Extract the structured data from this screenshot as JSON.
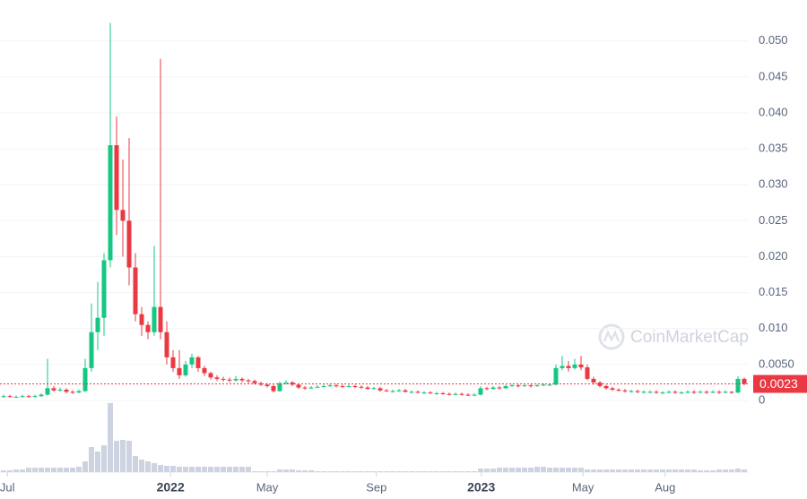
{
  "chart_data": {
    "type": "candlestick",
    "open": [
      0.0005,
      0.0006,
      0.0005,
      0.0005,
      0.0006,
      0.0005,
      0.0006,
      0.0008,
      0.0017,
      0.0014,
      0.0015,
      0.0012,
      0.0011,
      0.0013,
      0.0045,
      0.0095,
      0.0115,
      0.0195,
      0.0355,
      0.0265,
      0.025,
      0.0185,
      0.012,
      0.0105,
      0.0095,
      0.013,
      0.0095,
      0.006,
      0.0045,
      0.0035,
      0.005,
      0.006,
      0.0045,
      0.0038,
      0.0032,
      0.003,
      0.0029,
      0.0028,
      0.003,
      0.0028,
      0.0027,
      0.0024,
      0.0022,
      0.002,
      0.0013,
      0.0024,
      0.0025,
      0.0022,
      0.0018,
      0.0017,
      0.0018,
      0.0019,
      0.002,
      0.0021,
      0.002,
      0.0019,
      0.002,
      0.0019,
      0.0018,
      0.0016,
      0.0017,
      0.0014,
      0.0013,
      0.0013,
      0.0014,
      0.0012,
      0.0012,
      0.0011,
      0.0011,
      0.001,
      0.001,
      0.0009,
      0.0008,
      0.0009,
      0.0008,
      0.0007,
      0.0008,
      0.0017,
      0.0016,
      0.0018,
      0.0017,
      0.002,
      0.0021,
      0.002,
      0.0021,
      0.002,
      0.0021,
      0.0022,
      0.0022,
      0.0045,
      0.0048,
      0.0045,
      0.005,
      0.0046,
      0.003,
      0.0025,
      0.002,
      0.0017,
      0.0015,
      0.0014,
      0.0013,
      0.0013,
      0.0012,
      0.0012,
      0.0012,
      0.0011,
      0.0011,
      0.0012,
      0.0011,
      0.0011,
      0.0012,
      0.0011,
      0.0012,
      0.0011,
      0.0012,
      0.0011,
      0.0012,
      0.0011,
      0.003
    ],
    "high": [
      0.0008,
      0.0008,
      0.0007,
      0.0008,
      0.0008,
      0.0008,
      0.001,
      0.0058,
      0.002,
      0.0018,
      0.0017,
      0.0014,
      0.0015,
      0.0058,
      0.0135,
      0.0165,
      0.0205,
      0.0525,
      0.0395,
      0.0335,
      0.0365,
      0.0205,
      0.013,
      0.011,
      0.0215,
      0.0475,
      0.011,
      0.007,
      0.007,
      0.0055,
      0.0065,
      0.0062,
      0.0048,
      0.004,
      0.0035,
      0.0033,
      0.0032,
      0.0034,
      0.0032,
      0.003,
      0.0029,
      0.0026,
      0.0024,
      0.0022,
      0.0026,
      0.0028,
      0.0027,
      0.0023,
      0.002,
      0.002,
      0.0021,
      0.0022,
      0.0023,
      0.0023,
      0.0022,
      0.0022,
      0.0022,
      0.0021,
      0.002,
      0.0019,
      0.0019,
      0.0016,
      0.0015,
      0.0016,
      0.0016,
      0.0014,
      0.0014,
      0.0013,
      0.0013,
      0.0012,
      0.0012,
      0.0011,
      0.0011,
      0.0011,
      0.001,
      0.001,
      0.002,
      0.0019,
      0.002,
      0.002,
      0.0022,
      0.0023,
      0.0023,
      0.0023,
      0.0023,
      0.0023,
      0.0024,
      0.0024,
      0.005,
      0.0062,
      0.0055,
      0.0058,
      0.0062,
      0.005,
      0.0033,
      0.0027,
      0.0022,
      0.0019,
      0.0017,
      0.0016,
      0.0015,
      0.0015,
      0.0014,
      0.0014,
      0.0014,
      0.0013,
      0.0014,
      0.0014,
      0.0013,
      0.0014,
      0.0014,
      0.0014,
      0.0014,
      0.0014,
      0.0014,
      0.0014,
      0.0013,
      0.0034,
      0.0032
    ],
    "low": [
      0.0004,
      0.0004,
      0.0004,
      0.0004,
      0.0004,
      0.0004,
      0.0005,
      0.0007,
      0.0012,
      0.0012,
      0.001,
      0.0009,
      0.001,
      0.0012,
      0.004,
      0.007,
      0.009,
      0.0185,
      0.023,
      0.02,
      0.016,
      0.011,
      0.009,
      0.0085,
      0.009,
      0.0085,
      0.005,
      0.004,
      0.003,
      0.0033,
      0.0045,
      0.004,
      0.0034,
      0.0029,
      0.0027,
      0.0026,
      0.0025,
      0.0026,
      0.0025,
      0.0024,
      0.0022,
      0.002,
      0.0018,
      0.0011,
      0.0012,
      0.0022,
      0.002,
      0.0016,
      0.0015,
      0.0016,
      0.0017,
      0.0018,
      0.0019,
      0.0018,
      0.0017,
      0.0018,
      0.0017,
      0.0016,
      0.0015,
      0.0015,
      0.0012,
      0.0012,
      0.0011,
      0.0012,
      0.0011,
      0.001,
      0.001,
      0.0009,
      0.0009,
      0.0008,
      0.0008,
      0.0007,
      0.0007,
      0.0007,
      0.0006,
      0.0006,
      0.0007,
      0.0014,
      0.0015,
      0.0015,
      0.0016,
      0.0019,
      0.0018,
      0.0019,
      0.0018,
      0.0019,
      0.002,
      0.002,
      0.0021,
      0.0042,
      0.004,
      0.0043,
      0.0042,
      0.0028,
      0.0022,
      0.0018,
      0.0015,
      0.0013,
      0.0012,
      0.0011,
      0.0011,
      0.001,
      0.001,
      0.001,
      0.0009,
      0.0009,
      0.001,
      0.0009,
      0.0009,
      0.001,
      0.0009,
      0.001,
      0.0009,
      0.001,
      0.0009,
      0.001,
      0.0009,
      0.001,
      0.0021
    ],
    "close": [
      0.0006,
      0.0005,
      0.0005,
      0.0006,
      0.0005,
      0.0006,
      0.0008,
      0.0017,
      0.0014,
      0.0015,
      0.0012,
      0.0011,
      0.0013,
      0.0045,
      0.0095,
      0.0115,
      0.0195,
      0.0355,
      0.0265,
      0.025,
      0.0185,
      0.012,
      0.0105,
      0.0095,
      0.013,
      0.0095,
      0.006,
      0.0045,
      0.0035,
      0.005,
      0.006,
      0.0045,
      0.0038,
      0.0032,
      0.003,
      0.0029,
      0.0028,
      0.003,
      0.0028,
      0.0027,
      0.0024,
      0.0022,
      0.002,
      0.0013,
      0.0024,
      0.0025,
      0.0022,
      0.0018,
      0.0017,
      0.0018,
      0.0019,
      0.002,
      0.0021,
      0.002,
      0.0019,
      0.002,
      0.0019,
      0.0018,
      0.0016,
      0.0017,
      0.0014,
      0.0013,
      0.0013,
      0.0014,
      0.0012,
      0.0012,
      0.0011,
      0.0011,
      0.001,
      0.001,
      0.0009,
      0.0008,
      0.0009,
      0.0008,
      0.0007,
      0.0008,
      0.0017,
      0.0016,
      0.0018,
      0.0017,
      0.002,
      0.0021,
      0.002,
      0.0021,
      0.002,
      0.0021,
      0.0022,
      0.0022,
      0.0045,
      0.0048,
      0.0045,
      0.005,
      0.0046,
      0.003,
      0.0025,
      0.002,
      0.0017,
      0.0015,
      0.0014,
      0.0013,
      0.0013,
      0.0012,
      0.0012,
      0.0012,
      0.0011,
      0.0011,
      0.0012,
      0.0011,
      0.0011,
      0.0012,
      0.0011,
      0.0012,
      0.0011,
      0.0012,
      0.0011,
      0.0012,
      0.0011,
      0.003,
      0.0023
    ],
    "volume": [
      2,
      2,
      3,
      3,
      5,
      5,
      5,
      5,
      5,
      5,
      5,
      5,
      6,
      12,
      28,
      23,
      30,
      77,
      35,
      36,
      35,
      18,
      14,
      12,
      10,
      8,
      7,
      7,
      6,
      6,
      6,
      6,
      6,
      6,
      6,
      6,
      6,
      6,
      6,
      6,
      1,
      1,
      1,
      1,
      3,
      3,
      3,
      2,
      2,
      2,
      1,
      1,
      1,
      1,
      1,
      1,
      1,
      1,
      1,
      1,
      1,
      1,
      1,
      1,
      1,
      1,
      1,
      1,
      1,
      1,
      1,
      1,
      1,
      1,
      1,
      1,
      4,
      4,
      4,
      5,
      5,
      5,
      5,
      5,
      5,
      6,
      6,
      5,
      5,
      5,
      5,
      5,
      5,
      3,
      3,
      3,
      3,
      3,
      3,
      3,
      3,
      3,
      3,
      3,
      3,
      3,
      3,
      3,
      3,
      3,
      3,
      2,
      2,
      2,
      3,
      3,
      3,
      4,
      3
    ],
    "volume_lim": [
      0,
      80
    ],
    "up_color": "#16c784",
    "down_color": "#ea3943",
    "volume_color": "#cdd3e0",
    "xlim": [
      -0.571,
      118.714
    ],
    "xticks": [
      {
        "value": 0.6,
        "label": "Jul"
      },
      {
        "value": 26.6,
        "label": "2022"
      },
      {
        "value": 42,
        "label": "May"
      },
      {
        "value": 59.4,
        "label": "Sep"
      },
      {
        "value": 76.1,
        "label": "2023"
      },
      {
        "value": 92.3,
        "label": "May"
      },
      {
        "value": 105.4,
        "label": "Aug"
      }
    ],
    "ylim": [
      0,
      0.0557
    ],
    "yticks": [
      0,
      {
        "value": 0.005,
        "label": "0.0050"
      },
      {
        "value": 0.01,
        "label": "0.010"
      },
      {
        "value": 0.015,
        "label": "0.015"
      },
      {
        "value": 0.02,
        "label": "0.020"
      },
      {
        "value": 0.025,
        "label": "0.025"
      },
      {
        "value": 0.03,
        "label": "0.030"
      },
      {
        "value": 0.035,
        "label": "0.035"
      },
      {
        "value": 0.04,
        "label": "0.040"
      },
      {
        "value": 0.045,
        "label": "0.045"
      },
      {
        "value": 0.05,
        "label": "0.050"
      }
    ],
    "current_price": 0.0023,
    "watermark": "CoinMarketCap",
    "grid": true
  }
}
